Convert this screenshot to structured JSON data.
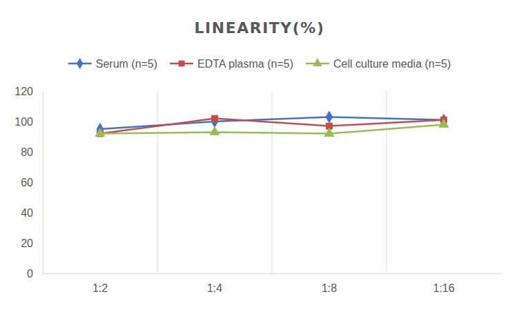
{
  "chart_data": {
    "type": "line",
    "title": "LINEARITY(%)",
    "categories": [
      "1:2",
      "1:4",
      "1:8",
      "1:16"
    ],
    "series": [
      {
        "name": "Serum (n=5)",
        "color": "#4472c4",
        "marker": "diamond",
        "values": [
          95,
          100,
          103,
          101
        ]
      },
      {
        "name": "EDTA plasma (n=5)",
        "color": "#c0504d",
        "marker": "square",
        "values": [
          92,
          102,
          97,
          101
        ]
      },
      {
        "name": "Cell culture media (n=5)",
        "color": "#9bbb59",
        "marker": "triangle",
        "values": [
          92,
          93,
          92,
          98
        ]
      }
    ],
    "ylim": [
      0,
      120
    ],
    "yticks": [
      0,
      20,
      40,
      60,
      80,
      100,
      120
    ],
    "grid": true,
    "legend": "top"
  }
}
